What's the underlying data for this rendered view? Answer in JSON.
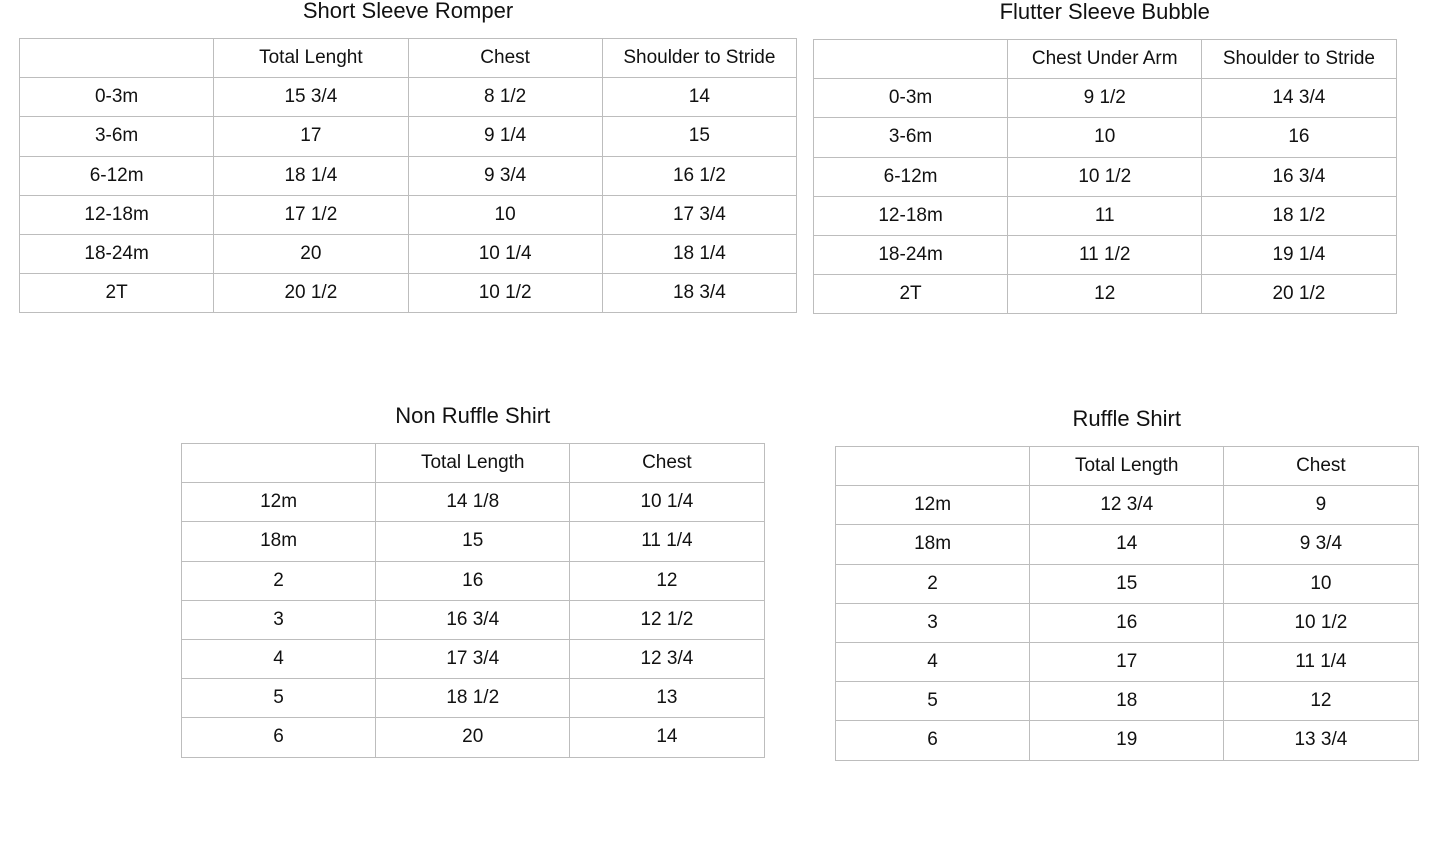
{
  "tables": [
    {
      "title": "Short Sleeve Romper",
      "headers": [
        "",
        "Total Lenght",
        "Chest",
        "Shoulder to Stride"
      ],
      "rows": [
        [
          "0-3m",
          "15 3/4",
          "8 1/2",
          "14"
        ],
        [
          "3-6m",
          "17",
          "9 1/4",
          "15"
        ],
        [
          "6-12m",
          "18 1/4",
          "9 3/4",
          "16 1/2"
        ],
        [
          "12-18m",
          "17 1/2",
          "10",
          "17 3/4"
        ],
        [
          "18-24m",
          "20",
          "10 1/4",
          "18 1/4"
        ],
        [
          "2T",
          "20 1/2",
          "10 1/2",
          "18 3/4"
        ]
      ]
    },
    {
      "title": "Flutter Sleeve Bubble",
      "headers": [
        "",
        "Chest Under Arm",
        "Shoulder to Stride"
      ],
      "rows": [
        [
          "0-3m",
          "9 1/2",
          "14 3/4"
        ],
        [
          "3-6m",
          "10",
          "16"
        ],
        [
          "6-12m",
          "10 1/2",
          "16 3/4"
        ],
        [
          "12-18m",
          "11",
          "18 1/2"
        ],
        [
          "18-24m",
          "11 1/2",
          "19 1/4"
        ],
        [
          "2T",
          "12",
          "20 1/2"
        ]
      ]
    },
    {
      "title": "Non Ruffle Shirt",
      "headers": [
        "",
        "Total Length",
        "Chest"
      ],
      "rows": [
        [
          "12m",
          "14 1/8",
          "10 1/4"
        ],
        [
          "18m",
          "15",
          "11 1/4"
        ],
        [
          "2",
          "16",
          "12"
        ],
        [
          "3",
          "16 3/4",
          "12 1/2"
        ],
        [
          "4",
          "17 3/4",
          "12 3/4"
        ],
        [
          "5",
          "18 1/2",
          "13"
        ],
        [
          "6",
          "20",
          "14"
        ]
      ]
    },
    {
      "title": "Ruffle Shirt",
      "headers": [
        "",
        "Total Length",
        "Chest"
      ],
      "rows": [
        [
          "12m",
          "12 3/4",
          "9"
        ],
        [
          "18m",
          "14",
          "9 3/4"
        ],
        [
          "2",
          "15",
          "10"
        ],
        [
          "3",
          "16",
          "10 1/2"
        ],
        [
          "4",
          "17",
          "11 1/4"
        ],
        [
          "5",
          "18",
          "12"
        ],
        [
          "6",
          "19",
          "13 3/4"
        ]
      ]
    }
  ]
}
